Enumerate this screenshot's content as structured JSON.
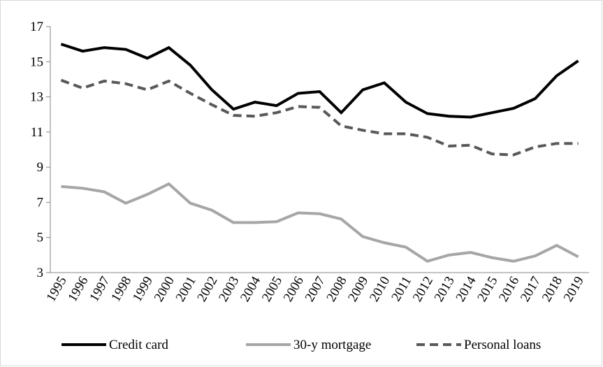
{
  "chart_data": {
    "type": "line",
    "categories": [
      "1995",
      "1996",
      "1997",
      "1998",
      "1999",
      "2000",
      "2001",
      "2002",
      "2003",
      "2004",
      "2005",
      "2006",
      "2007",
      "2008",
      "2009",
      "2010",
      "2011",
      "2012",
      "2013",
      "2014",
      "2015",
      "2016",
      "2017",
      "2018",
      "2019"
    ],
    "series": [
      {
        "name": "Credit card",
        "color": "#000000",
        "dash": false,
        "values": [
          16.0,
          15.6,
          15.8,
          15.7,
          15.2,
          15.8,
          14.8,
          13.4,
          12.3,
          12.7,
          12.5,
          13.2,
          13.3,
          12.1,
          13.4,
          13.8,
          12.7,
          12.05,
          11.9,
          11.85,
          12.1,
          12.35,
          12.9,
          14.2,
          15.05
        ]
      },
      {
        "name": "30-y mortgage",
        "color": "#a6a6a6",
        "dash": false,
        "values": [
          7.9,
          7.8,
          7.6,
          6.95,
          7.45,
          8.05,
          6.95,
          6.55,
          5.85,
          5.85,
          5.9,
          6.4,
          6.35,
          6.05,
          5.05,
          4.7,
          4.45,
          3.65,
          4.0,
          4.15,
          3.85,
          3.65,
          3.95,
          4.55,
          3.9
        ]
      },
      {
        "name": "Personal loans",
        "color": "#595959",
        "dash": true,
        "values": [
          13.95,
          13.5,
          13.9,
          13.75,
          13.4,
          13.9,
          13.2,
          12.55,
          11.95,
          11.9,
          12.1,
          12.45,
          12.4,
          11.35,
          11.1,
          10.9,
          10.9,
          10.7,
          10.2,
          10.25,
          9.75,
          9.7,
          10.15,
          10.35,
          10.35
        ]
      }
    ],
    "ylim": [
      3,
      17
    ],
    "yticks": [
      3,
      5,
      7,
      9,
      11,
      13,
      15,
      17
    ],
    "grid": false,
    "legend": "bottom"
  }
}
